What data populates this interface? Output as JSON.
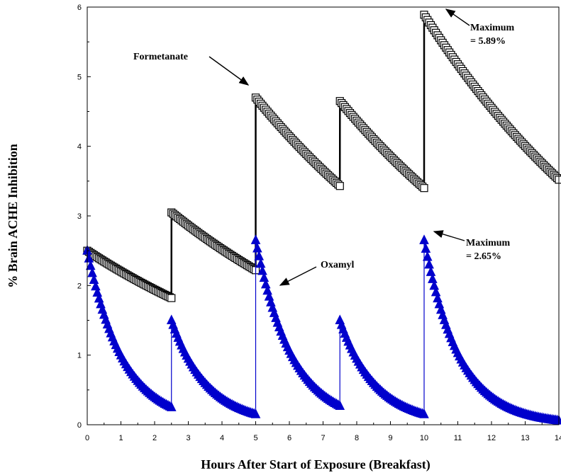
{
  "chart_data": {
    "type": "line",
    "xlabel": "Hours After Start of Exposure (Breakfast)",
    "ylabel": "% Brain ACHE Inhibition",
    "xlim": [
      0,
      14
    ],
    "ylim": [
      0,
      6
    ],
    "xticks": [
      "0",
      "1",
      "2",
      "3",
      "4",
      "5",
      "6",
      "7",
      "8",
      "9",
      "10",
      "11",
      "12",
      "13",
      "14"
    ],
    "yticks": [
      "0",
      "1",
      "2",
      "3",
      "4",
      "5",
      "6"
    ],
    "grid": false,
    "series": [
      {
        "name": "Formetanate",
        "color": "#000000",
        "marker": "square",
        "doses": [
          {
            "t": 0,
            "peak": 2.5,
            "end": 1.82
          },
          {
            "t": 2.5,
            "peak": 3.05,
            "end": 2.22
          },
          {
            "t": 5,
            "peak": 4.7,
            "end": 3.43
          },
          {
            "t": 7.5,
            "peak": 4.65,
            "end": 3.4
          },
          {
            "t": 10,
            "peak": 5.89,
            "end": 3.52,
            "t_end": 14
          }
        ]
      },
      {
        "name": "Oxamyl",
        "color": "#0000cc",
        "marker": "triangle",
        "doses": [
          {
            "t": 0,
            "peak": 2.5,
            "end": 0.25
          },
          {
            "t": 2.5,
            "peak": 1.5,
            "end": 0.15
          },
          {
            "t": 5,
            "peak": 2.65,
            "end": 0.27
          },
          {
            "t": 7.5,
            "peak": 1.5,
            "end": 0.15
          },
          {
            "t": 10,
            "peak": 2.65,
            "end": 0.06,
            "t_end": 14
          }
        ]
      }
    ],
    "annotations": {
      "formetanate_label": "Formetanate",
      "oxamyl_label": "Oxamyl",
      "max1_line1": "Maximum",
      "max1_line2": "= 5.89%",
      "max2_line1": "Maximum",
      "max2_line2": "= 2.65%"
    }
  }
}
